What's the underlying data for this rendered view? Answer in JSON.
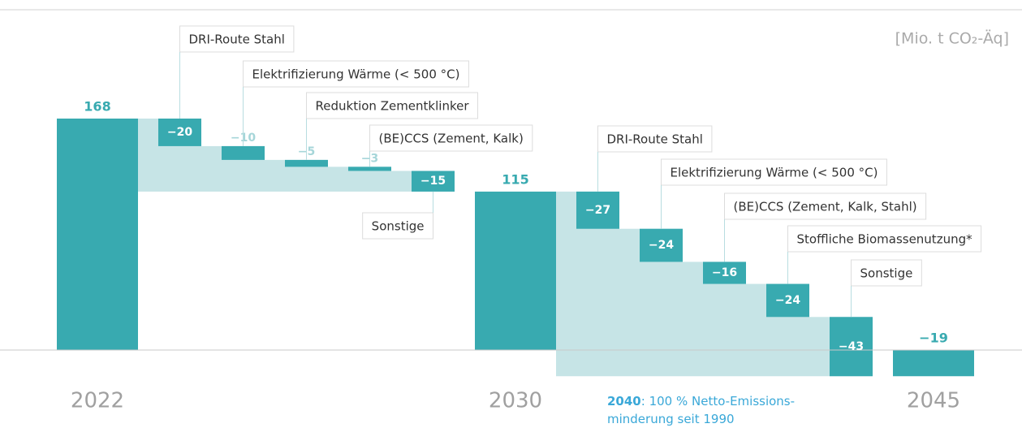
{
  "chart_data": {
    "type": "waterfall",
    "unit_label": "[Mio. t CO₂-Äq]",
    "categories": [
      "2022",
      "DRI-Route Stahl",
      "Elektrifizierung Wärme (< 500 °C)",
      "Reduktion Zementklinker",
      "(BE)CCS (Zement, Kalk)",
      "Sonstige",
      "2030",
      "DRI-Route Stahl",
      "Elektrifizierung Wärme (< 500 °C)",
      "(BE)CCS (Zement, Kalk, Stahl)",
      "Stoffliche Biomassenutzung*",
      "Sonstige",
      "2045"
    ],
    "values": [
      168,
      -20,
      -10,
      -5,
      -3,
      -15,
      115,
      -27,
      -24,
      -16,
      -24,
      -43,
      -19
    ],
    "value_labels": [
      "168",
      "−20",
      "−10",
      "−5",
      "−3",
      "−15",
      "115",
      "−27",
      "−24",
      "−16",
      "−24",
      "−43",
      "−19"
    ],
    "color": "#38aab0",
    "band_color": "#c6e4e6",
    "annotation": [
      "2040",
      ": 100 % Netto-Emissions-",
      "minderung seit 1990"
    ]
  }
}
